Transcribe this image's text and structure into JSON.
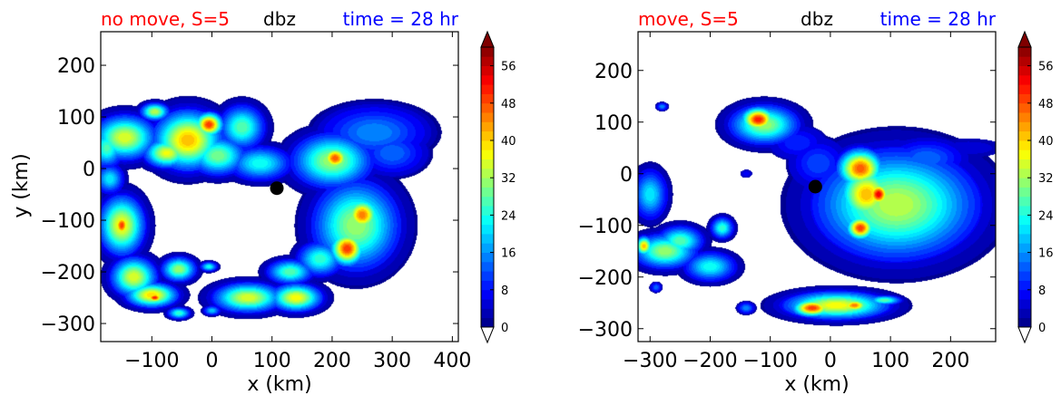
{
  "chart_data": [
    {
      "type": "heatmap",
      "title_left": "no move, S=5",
      "title_center": "dbz",
      "title_right": "time = 28 hr",
      "xlabel": "x (km)",
      "ylabel": "y (km)",
      "xlim": [
        -185,
        410
      ],
      "ylim": [
        -335,
        265
      ],
      "xticks": [
        -100,
        0,
        100,
        200,
        300,
        400
      ],
      "yticks": [
        -300,
        -200,
        -100,
        0,
        100,
        200
      ],
      "xtick_labels": [
        "−100",
        "0",
        "100",
        "200",
        "300",
        "400"
      ],
      "ytick_labels": [
        "−300",
        "−200",
        "−100",
        "0",
        "100",
        "200"
      ],
      "center_marker": {
        "x": 108,
        "y": -38
      },
      "blobs": [
        {
          "x": -145,
          "y": 60,
          "rx": 55,
          "ry": 45,
          "peak": 34
        },
        {
          "x": -40,
          "y": 55,
          "rx": 60,
          "ry": 60,
          "peak": 40
        },
        {
          "x": -5,
          "y": 85,
          "rx": 25,
          "ry": 25,
          "peak": 48
        },
        {
          "x": -75,
          "y": 30,
          "rx": 40,
          "ry": 30,
          "peak": 35
        },
        {
          "x": 50,
          "y": 80,
          "rx": 40,
          "ry": 45,
          "peak": 26
        },
        {
          "x": -95,
          "y": 110,
          "rx": 25,
          "ry": 18,
          "peak": 32
        },
        {
          "x": -175,
          "y": 40,
          "rx": 30,
          "ry": 40,
          "peak": 25
        },
        {
          "x": 80,
          "y": 10,
          "rx": 55,
          "ry": 35,
          "peak": 22
        },
        {
          "x": 10,
          "y": 25,
          "rx": 50,
          "ry": 40,
          "peak": 28
        },
        {
          "x": 270,
          "y": 70,
          "rx": 95,
          "ry": 55,
          "peak": 14
        },
        {
          "x": 200,
          "y": 15,
          "rx": 70,
          "ry": 55,
          "peak": 30
        },
        {
          "x": 205,
          "y": 20,
          "rx": 25,
          "ry": 25,
          "peak": 46
        },
        {
          "x": 300,
          "y": 30,
          "rx": 60,
          "ry": 45,
          "peak": 12
        },
        {
          "x": 240,
          "y": -110,
          "rx": 75,
          "ry": 90,
          "peak": 30
        },
        {
          "x": 225,
          "y": -155,
          "rx": 30,
          "ry": 35,
          "peak": 48
        },
        {
          "x": 250,
          "y": -90,
          "rx": 30,
          "ry": 35,
          "peak": 44
        },
        {
          "x": 180,
          "y": -175,
          "rx": 40,
          "ry": 35,
          "peak": 24
        },
        {
          "x": -150,
          "y": -110,
          "rx": 40,
          "ry": 60,
          "peak": 36
        },
        {
          "x": -150,
          "y": -110,
          "rx": 15,
          "ry": 25,
          "peak": 48
        },
        {
          "x": -170,
          "y": -20,
          "rx": 25,
          "ry": 30,
          "peak": 20
        },
        {
          "x": -130,
          "y": -210,
          "rx": 40,
          "ry": 40,
          "peak": 34
        },
        {
          "x": -100,
          "y": -245,
          "rx": 45,
          "ry": 25,
          "peak": 38
        },
        {
          "x": -95,
          "y": -250,
          "rx": 15,
          "ry": 10,
          "peak": 50
        },
        {
          "x": -55,
          "y": -195,
          "rx": 30,
          "ry": 25,
          "peak": 30
        },
        {
          "x": -5,
          "y": -190,
          "rx": 15,
          "ry": 10,
          "peak": 22
        },
        {
          "x": 60,
          "y": -250,
          "rx": 60,
          "ry": 30,
          "peak": 34
        },
        {
          "x": 140,
          "y": -250,
          "rx": 45,
          "ry": 28,
          "peak": 36
        },
        {
          "x": 130,
          "y": -200,
          "rx": 40,
          "ry": 25,
          "peak": 26
        },
        {
          "x": -55,
          "y": -280,
          "rx": 20,
          "ry": 12,
          "peak": 24
        },
        {
          "x": 0,
          "y": -275,
          "rx": 15,
          "ry": 10,
          "peak": 18
        }
      ]
    },
    {
      "type": "heatmap",
      "title_left": "move, S=5",
      "title_center": "dbz",
      "title_right": "time = 28 hr",
      "xlabel": "x (km)",
      "ylabel": "",
      "xlim": [
        -320,
        275
      ],
      "ylim": [
        -325,
        275
      ],
      "xticks": [
        -300,
        -200,
        -100,
        0,
        100,
        200
      ],
      "yticks": [
        -300,
        -200,
        -100,
        0,
        100,
        200
      ],
      "xtick_labels": [
        "−300",
        "−200",
        "−100",
        "0",
        "100",
        "200"
      ],
      "ytick_labels": [
        "−300",
        "−200",
        "−100",
        "0",
        "100",
        "200"
      ],
      "center_marker": {
        "x": -25,
        "y": -25
      },
      "blobs": [
        {
          "x": -110,
          "y": 95,
          "rx": 60,
          "ry": 40,
          "peak": 30
        },
        {
          "x": -120,
          "y": 105,
          "rx": 30,
          "ry": 25,
          "peak": 50
        },
        {
          "x": -55,
          "y": 60,
          "rx": 50,
          "ry": 35,
          "peak": 8
        },
        {
          "x": 110,
          "y": -60,
          "rx": 140,
          "ry": 110,
          "peak": 32
        },
        {
          "x": 50,
          "y": 10,
          "rx": 40,
          "ry": 40,
          "peak": 46
        },
        {
          "x": 60,
          "y": -40,
          "rx": 50,
          "ry": 60,
          "peak": 40
        },
        {
          "x": 80,
          "y": -40,
          "rx": 20,
          "ry": 25,
          "peak": 52
        },
        {
          "x": 50,
          "y": -105,
          "rx": 25,
          "ry": 25,
          "peak": 48
        },
        {
          "x": 160,
          "y": 30,
          "rx": 70,
          "ry": 40,
          "peak": 12
        },
        {
          "x": 230,
          "y": 50,
          "rx": 60,
          "ry": 18,
          "peak": 4
        },
        {
          "x": -20,
          "y": 20,
          "rx": 50,
          "ry": 50,
          "peak": 10
        },
        {
          "x": -300,
          "y": -40,
          "rx": 30,
          "ry": 50,
          "peak": 20
        },
        {
          "x": -275,
          "y": -150,
          "rx": 55,
          "ry": 35,
          "peak": 30
        },
        {
          "x": -250,
          "y": -130,
          "rx": 40,
          "ry": 30,
          "peak": 26
        },
        {
          "x": -200,
          "y": -180,
          "rx": 45,
          "ry": 30,
          "peak": 22
        },
        {
          "x": -180,
          "y": -105,
          "rx": 20,
          "ry": 22,
          "peak": 24
        },
        {
          "x": -310,
          "y": -140,
          "rx": 15,
          "ry": 20,
          "peak": 40
        },
        {
          "x": -280,
          "y": 130,
          "rx": 10,
          "ry": 8,
          "peak": 14
        },
        {
          "x": -140,
          "y": -260,
          "rx": 15,
          "ry": 12,
          "peak": 14
        },
        {
          "x": -290,
          "y": -220,
          "rx": 10,
          "ry": 10,
          "peak": 12
        },
        {
          "x": -140,
          "y": 0,
          "rx": 10,
          "ry": 8,
          "peak": 6
        },
        {
          "x": 10,
          "y": -255,
          "rx": 90,
          "ry": 28,
          "peak": 36
        },
        {
          "x": -30,
          "y": -260,
          "rx": 35,
          "ry": 18,
          "peak": 48
        },
        {
          "x": 40,
          "y": -255,
          "rx": 25,
          "ry": 14,
          "peak": 44
        },
        {
          "x": 90,
          "y": -245,
          "rx": 30,
          "ry": 10,
          "peak": 26
        }
      ]
    }
  ],
  "colorbar": {
    "min": 0,
    "max": 60,
    "step": 2,
    "tick_values": [
      0,
      8,
      16,
      24,
      32,
      40,
      48,
      56
    ],
    "tick_labels": [
      "0",
      "8",
      "16",
      "24",
      "32",
      "40",
      "48",
      "56"
    ],
    "extend": "both",
    "colormap": "jet"
  },
  "colors": {
    "title_left": "#ff0000",
    "title_center": "#000000",
    "title_right": "#0000ff",
    "marker": "#000000"
  }
}
